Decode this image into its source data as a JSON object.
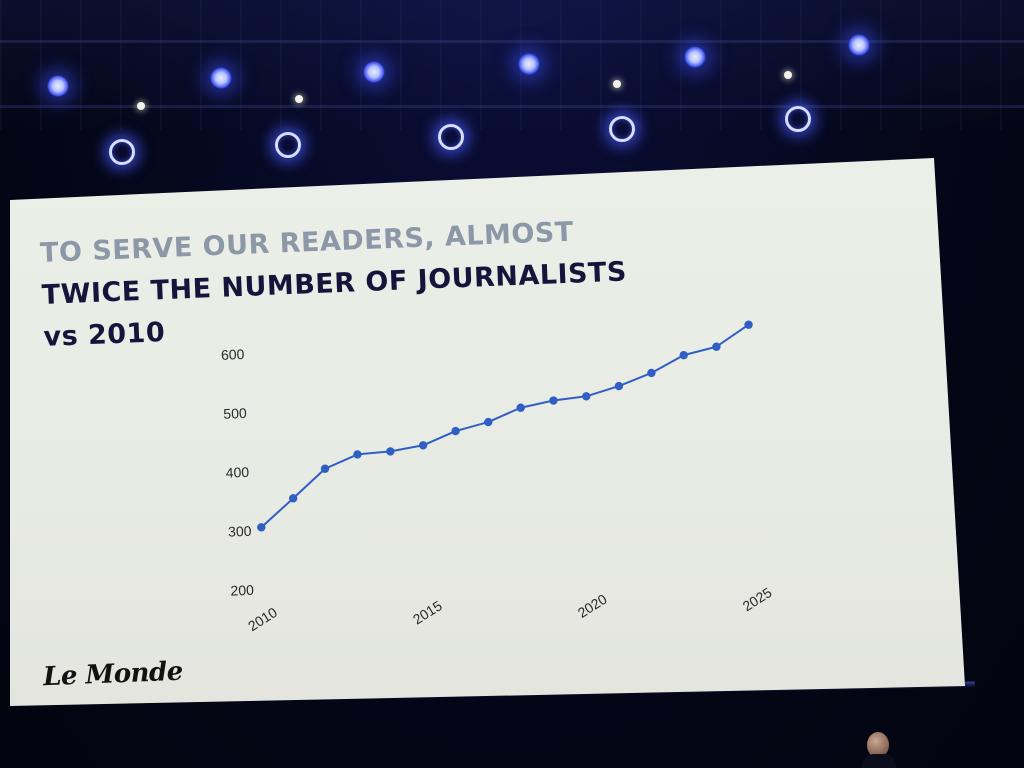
{
  "slide": {
    "title_line1": "TO SERVE OUR READERS, ALMOST",
    "title_line2": "TWICE THE NUMBER OF JOURNALISTS",
    "title_line3": "vs 2010",
    "logo": "Le Monde"
  },
  "colors": {
    "title_gray": "#8c98a8",
    "title_dark": "#16143a",
    "series": "#2f5fc4",
    "screen": "#eceee8",
    "stage_light": "#4a5cff"
  },
  "chart_data": {
    "type": "line",
    "title": "",
    "xlabel": "",
    "ylabel": "",
    "x": [
      2010,
      2011,
      2012,
      2013,
      2014,
      2015,
      2016,
      2017,
      2018,
      2019,
      2020,
      2021,
      2022,
      2023,
      2024,
      2025
    ],
    "series": [
      {
        "values": [
          305,
          352,
          400,
          422,
          425,
          433,
          455,
          468,
          490,
          500,
          505,
          520,
          540,
          568,
          580,
          615
        ]
      }
    ],
    "xlim": [
      2010,
      2025
    ],
    "ylim": [
      200,
      600
    ],
    "y_ticks": [
      200,
      300,
      400,
      500,
      600
    ],
    "x_ticks": [
      2010,
      2015,
      2020,
      2025
    ],
    "grid": false,
    "legend": "none"
  }
}
